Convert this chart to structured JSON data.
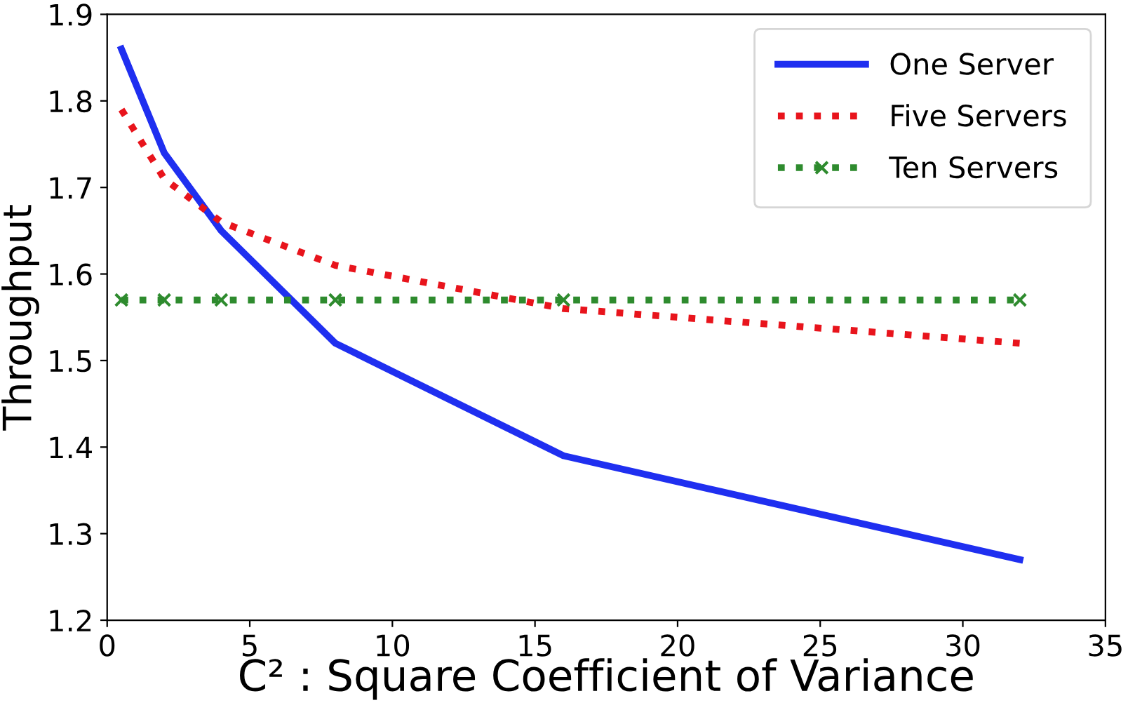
{
  "chart_data": {
    "type": "line",
    "xlabel": "C² : Square Coefficient of Variance",
    "ylabel": "Throughput",
    "x": [
      0.5,
      2,
      4,
      8,
      16,
      32
    ],
    "series": [
      {
        "name": "One Server",
        "color": "#1f2ff0",
        "values": [
          1.86,
          1.74,
          1.65,
          1.52,
          1.39,
          1.27
        ],
        "line_style": "solid",
        "marker": "none"
      },
      {
        "name": "Five Servers",
        "color": "#e8141c",
        "values": [
          1.79,
          1.71,
          1.66,
          1.61,
          1.56,
          1.52
        ],
        "line_style": "dotted",
        "marker": "none"
      },
      {
        "name": "Ten Servers",
        "color": "#2e8b2e",
        "values": [
          1.57,
          1.57,
          1.57,
          1.57,
          1.57,
          1.57
        ],
        "line_style": "dotted",
        "marker": "cross"
      }
    ],
    "xlim": [
      0,
      35
    ],
    "xticks": [
      0,
      5,
      10,
      15,
      20,
      25,
      30,
      35
    ],
    "ylim": [
      1.2,
      1.9
    ],
    "yticks": [
      1.2,
      1.3,
      1.4,
      1.5,
      1.6,
      1.7,
      1.8,
      1.9
    ],
    "grid": false,
    "legend": "top right"
  }
}
